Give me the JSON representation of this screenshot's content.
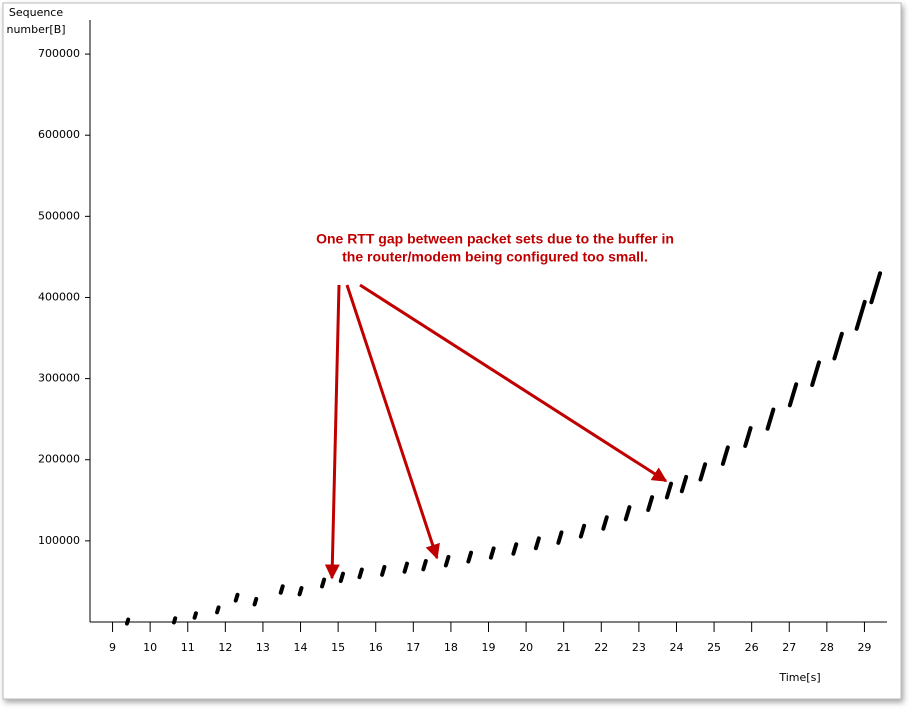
{
  "chart_data": {
    "type": "scatter",
    "y_label": [
      "Sequence",
      "number[B]"
    ],
    "x_label": "Time[s]",
    "annotation": [
      "One RTT gap between packet sets due to the buffer in",
      "the router/modem being configured too small."
    ],
    "annotation_color": "#c00000",
    "color": "#000000",
    "x": [
      9.4,
      10.65,
      11.2,
      11.8,
      12.3,
      12.8,
      13.5,
      14,
      14.6,
      15.1,
      15.6,
      16.2,
      16.8,
      17.3,
      17.9,
      18.5,
      19.1,
      19.7,
      20.3,
      20.9,
      21.5,
      22.1,
      22.7,
      23.3,
      23.8,
      24.2,
      24.7,
      25.3,
      25.9,
      26.5,
      27.1,
      27.7,
      28.3,
      28.9,
      29.3
    ],
    "values": [
      500,
      2000,
      8000,
      15000,
      30000,
      25000,
      40000,
      38000,
      48000,
      55000,
      60000,
      63000,
      67000,
      70000,
      75000,
      80000,
      85000,
      90000,
      97000,
      104000,
      112000,
      122000,
      134000,
      146000,
      162000,
      170000,
      185000,
      205000,
      228000,
      250000,
      280000,
      306000,
      340000,
      378000,
      412000
    ],
    "xlim": [
      8.4,
      29.6
    ],
    "xticks": [
      9,
      10,
      11,
      12,
      13,
      14,
      15,
      16,
      17,
      18,
      19,
      20,
      21,
      22,
      23,
      24,
      25,
      26,
      27,
      28,
      29
    ],
    "ylim": [
      0,
      742000
    ],
    "yticks": [
      100000,
      200000,
      300000,
      400000,
      500000,
      600000,
      700000
    ]
  }
}
